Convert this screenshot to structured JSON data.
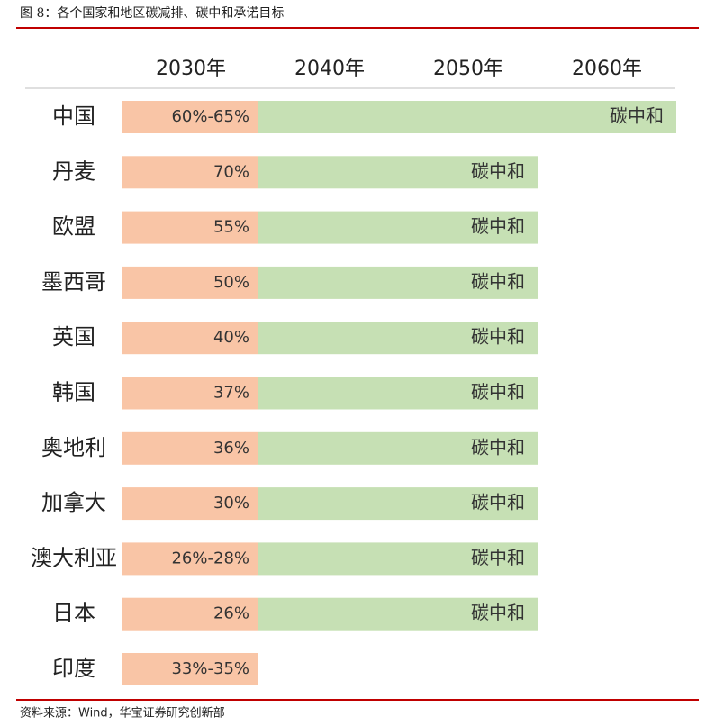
{
  "header": {
    "title": "图 8：各个国家和地区碳减排、碳中和承诺目标"
  },
  "table": {
    "columns": [
      "2030年",
      "2040年",
      "2050年",
      "2060年"
    ],
    "rows": [
      {
        "label": "中国",
        "cells": {
          "2030年": "60%-65%",
          "2060年": "碳中和"
        }
      },
      {
        "label": "丹麦",
        "cells": {
          "2030年": "70%",
          "2050年": "碳中和"
        }
      },
      {
        "label": "欧盟",
        "cells": {
          "2030年": "55%",
          "2050年": "碳中和"
        }
      },
      {
        "label": "墨西哥",
        "cells": {
          "2030年": "50%",
          "2050年": "碳中和"
        }
      },
      {
        "label": "英国",
        "cells": {
          "2030年": "40%",
          "2050年": "碳中和"
        }
      },
      {
        "label": "韩国",
        "cells": {
          "2030年": "37%",
          "2050年": "碳中和"
        }
      },
      {
        "label": "奥地利",
        "cells": {
          "2030年": "36%",
          "2050年": "碳中和"
        }
      },
      {
        "label": "加拿大",
        "cells": {
          "2030年": "30%",
          "2050年": "碳中和"
        }
      },
      {
        "label": "澳大利亚",
        "cells": {
          "2030年": "26%-28%",
          "2050年": "碳中和"
        }
      },
      {
        "label": "日本",
        "cells": {
          "2030年": "26%",
          "2050年": "碳中和"
        }
      },
      {
        "label": "印度",
        "cells": {
          "2030年": "33%-35%"
        }
      }
    ]
  },
  "footer": {
    "source": "资料来源：Wind，华宝证券研究创新部"
  }
}
